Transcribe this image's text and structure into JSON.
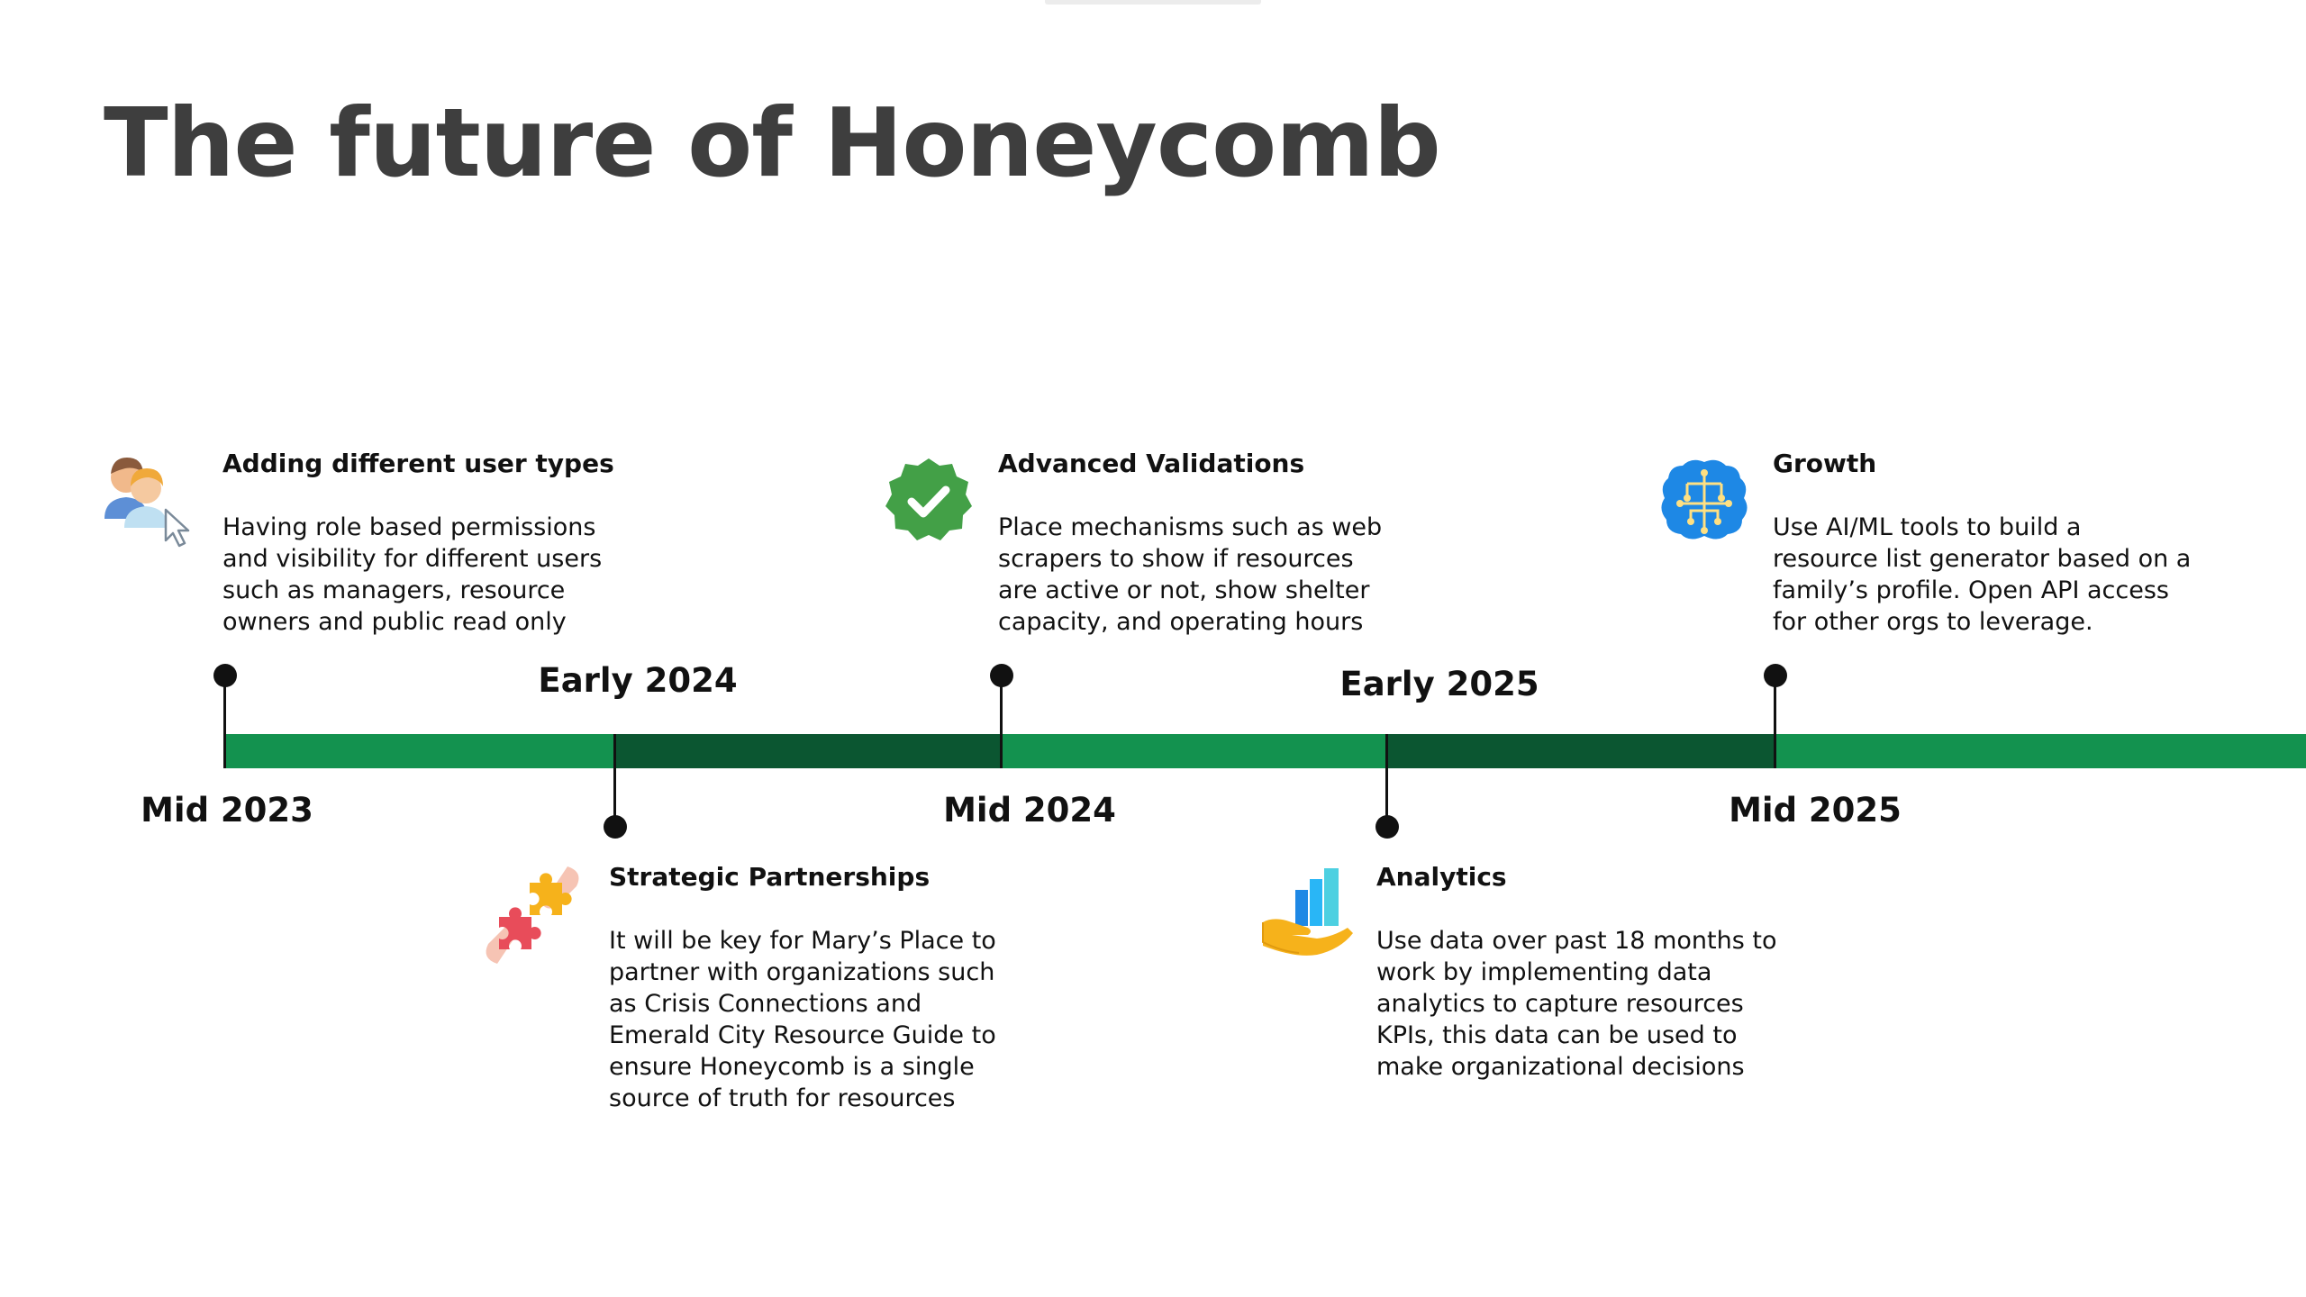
{
  "title": "The future of Honeycomb",
  "colors": {
    "track_green": "#13924f",
    "track_dark_green": "#0b5631",
    "title_gray": "#3e3e3e"
  },
  "periods": {
    "mid_2023": "Mid 2023",
    "early_2024": "Early 2024",
    "mid_2024": "Mid 2024",
    "early_2025": "Early 2025",
    "mid_2025": "Mid 2025"
  },
  "milestones": [
    {
      "icon": "users-icon",
      "title": "Adding different user types",
      "body": "Having role based permissions\nand visibility for different users\nsuch as managers, resource\nowners and public read only"
    },
    {
      "icon": "puzzle-icon",
      "title": "Strategic Partnerships",
      "body": "It will be key for Mary’s Place to\npartner with organizations such\nas Crisis Connections and\nEmerald City Resource Guide to\nensure Honeycomb is a single\nsource of truth for resources"
    },
    {
      "icon": "verified-check-icon",
      "title": "Advanced Validations",
      "body": "Place mechanisms such as web\nscrapers  to show if resources\nare active or not, show shelter\ncapacity, and operating hours"
    },
    {
      "icon": "analytics-icon",
      "title": "Analytics",
      "body": "Use data over past 18 months to\nwork by implementing data\nanalytics to capture resources\nKPIs, this data can be used to\nmake organizational decisions"
    },
    {
      "icon": "ai-brain-icon",
      "title": "Growth",
      "body": "Use AI/ML tools to build a\nresource list generator based on a\nfamily’s profile. Open API access\nfor other orgs  to leverage."
    }
  ]
}
